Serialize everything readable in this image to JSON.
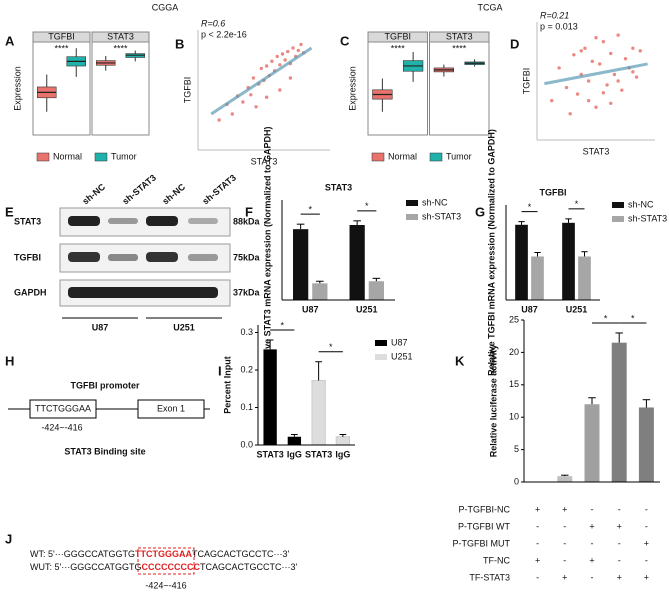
{
  "figure": {
    "group_labels": [
      "CGGA",
      "TCGA"
    ],
    "panel_letters": [
      "A",
      "B",
      "C",
      "D",
      "E",
      "F",
      "G",
      "H",
      "I",
      "J",
      "K"
    ]
  },
  "blot": {
    "lanes": [
      "sh-NC",
      "sh-STAT3",
      "sh-NC",
      "sh-STAT3"
    ],
    "proteins": [
      "STAT3",
      "TGFBI",
      "GAPDH"
    ],
    "sizes": [
      "88kDa",
      "75kDa",
      "37kDa"
    ],
    "cells": [
      "U87",
      "U251"
    ]
  },
  "promoter": {
    "site": "TTCTGGGAA",
    "exon": "Exon 1",
    "title": "TGFBI promoter",
    "position": "-424~-416",
    "caption": "STAT3 Binding site"
  },
  "sequences": {
    "rows": [
      {
        "prefix": "WT: 5'···GGGCCATGGTG",
        "site": "TTCTGGGAA",
        "suffix": "TCAGCACTGCCTC···3'"
      },
      {
        "prefix": "WUT: 5'···GGGCCATGGTG",
        "site": "CCCCCCCCC",
        "suffix": "TCAGCACTGCCTC···3'"
      }
    ],
    "position": "-424~-416"
  },
  "chart_data": [
    {
      "type": "box",
      "facets": [
        "TGFBI",
        "STAT3"
      ],
      "ylabel": "Expression",
      "significance": [
        "****",
        "****"
      ],
      "ylim": [
        3,
        15
      ],
      "series": [
        {
          "name": "Normal",
          "color": "#e8736c",
          "boxes": [
            {
              "whisker_low": 6,
              "q1": 7.8,
              "median": 8.5,
              "q3": 9.2,
              "whisker_high": 10.8
            },
            {
              "whisker_low": 11.3,
              "q1": 12,
              "median": 12.3,
              "q3": 12.6,
              "whisker_high": 13.2
            }
          ]
        },
        {
          "name": "Tumor",
          "color": "#20b2aa",
          "boxes": [
            {
              "whisker_low": 10.5,
              "q1": 11.9,
              "median": 12.5,
              "q3": 13.1,
              "whisker_high": 14.2
            },
            {
              "whisker_low": 12.5,
              "q1": 13,
              "median": 13.3,
              "q3": 13.5,
              "whisker_high": 13.9
            }
          ]
        }
      ]
    },
    {
      "type": "scatter",
      "annotations": [
        "R=0.6",
        "p < 2.2e-16"
      ],
      "xlabel": "STAT3",
      "ylabel": "TGFBI",
      "color": "#e8736c",
      "line_color": "#5b9bb5",
      "xlim": [
        10,
        15
      ],
      "ylim": [
        5,
        15
      ],
      "x": [
        10.8,
        11.1,
        11.3,
        11.5,
        11.7,
        11.9,
        12,
        12.1,
        12.3,
        12.4,
        12.5,
        12.6,
        12.7,
        12.8,
        12.9,
        13,
        13.1,
        13.2,
        13.3,
        13.4,
        13.5,
        13.6,
        13.7,
        13.8,
        13.9,
        14,
        12.2,
        12.6,
        13.1,
        13.5
      ],
      "values": [
        7.5,
        8.8,
        8,
        9.5,
        9,
        10.2,
        9.6,
        11,
        10.5,
        11.8,
        10.8,
        12,
        11.2,
        12.4,
        11.6,
        12.8,
        12.1,
        13,
        12.5,
        13.2,
        12.2,
        13.5,
        12.8,
        13.3,
        13.8,
        13.1,
        8.6,
        9.4,
        10,
        11
      ],
      "trend_x": [
        10.5,
        14.3
      ],
      "trend_y": [
        8,
        13.5
      ]
    },
    {
      "type": "box",
      "facets": [
        "TGFBI",
        "STAT3"
      ],
      "ylabel": "Expression",
      "significance": [
        "****",
        "****"
      ],
      "ylim": [
        2,
        16
      ],
      "series": [
        {
          "name": "Normal",
          "color": "#e8736c",
          "boxes": [
            {
              "whisker_low": 5.5,
              "q1": 7.4,
              "median": 8.1,
              "q3": 8.8,
              "whisker_high": 10.5
            },
            {
              "whisker_low": 10.8,
              "q1": 11.5,
              "median": 11.8,
              "q3": 12.1,
              "whisker_high": 12.6
            }
          ]
        },
        {
          "name": "Tumor",
          "color": "#20b2aa",
          "boxes": [
            {
              "whisker_low": 10,
              "q1": 11.6,
              "median": 12.4,
              "q3": 13.2,
              "whisker_high": 14.5
            },
            {
              "whisker_low": 12.3,
              "q1": 12.6,
              "median": 12.8,
              "q3": 13,
              "whisker_high": 13.4
            }
          ]
        }
      ]
    },
    {
      "type": "scatter",
      "annotations": [
        "R=0.21",
        "p = 0.013"
      ],
      "xlabel": "STAT3",
      "ylabel": "TGFBI",
      "color": "#e8736c",
      "line_color": "#5b9bb5",
      "xlim": [
        2,
        3.6
      ],
      "ylim": [
        6,
        15
      ],
      "x": [
        2.2,
        2.3,
        2.4,
        2.5,
        2.55,
        2.6,
        2.65,
        2.7,
        2.75,
        2.8,
        2.85,
        2.9,
        2.95,
        3,
        3.05,
        3.1,
        3.15,
        3.2,
        3.25,
        3.3,
        3.35,
        3.4,
        2.45,
        2.7,
        2.9,
        3.1,
        3.3,
        2.6,
        2.8,
        3
      ],
      "values": [
        9,
        11.5,
        10,
        12.5,
        9.5,
        11,
        13,
        10.5,
        12,
        8.5,
        11.8,
        13.5,
        10.2,
        12.6,
        11,
        14,
        9.8,
        12.2,
        11.5,
        13,
        10.8,
        12.8,
        8,
        9,
        9.6,
        10.5,
        11.2,
        12.8,
        13.8,
        8.8
      ],
      "trend_x": [
        2.1,
        3.5
      ],
      "trend_y": [
        10.3,
        11.8
      ]
    },
    {
      "type": "bar",
      "title": "STAT3",
      "ylabel": "Relative STAT3 mRNA expression (Normalized to GAPDH)",
      "categories": [
        "U87",
        "U251"
      ],
      "ylim": [
        0,
        2.4
      ],
      "significance": [
        "*",
        "*"
      ],
      "series": [
        {
          "name": "sh-NC",
          "color": "#111111",
          "values": [
            1.7,
            1.8
          ],
          "errors": [
            0.12,
            0.1
          ]
        },
        {
          "name": "sh-STAT3",
          "color": "#a6a6a6",
          "values": [
            0.4,
            0.45
          ],
          "errors": [
            0.05,
            0.07
          ]
        }
      ]
    },
    {
      "type": "bar",
      "title": "TGFBI",
      "ylabel": "Relative TGFBI mRNA expression (Normalized to GAPDH)",
      "categories": [
        "U87",
        "U251"
      ],
      "ylim": [
        0,
        2.4
      ],
      "significance": [
        "*",
        "*"
      ],
      "series": [
        {
          "name": "sh-NC",
          "color": "#111111",
          "values": [
            1.9,
            1.95
          ],
          "errors": [
            0.08,
            0.1
          ]
        },
        {
          "name": "sh-STAT3",
          "color": "#a6a6a6",
          "values": [
            1.1,
            1.1
          ],
          "errors": [
            0.1,
            0.12
          ]
        }
      ]
    },
    {
      "type": "bar",
      "ylabel": "Percent Input",
      "categories": [
        "STAT3",
        "IgG",
        "STAT3",
        "IgG"
      ],
      "values": [
        0.255,
        0.022,
        0.172,
        0.022
      ],
      "errors": [
        0.025,
        0.006,
        0.05,
        0.006
      ],
      "colors": [
        "#000000",
        "#000000",
        "#dddddd",
        "#dddddd"
      ],
      "legend": [
        {
          "name": "U87",
          "color": "#000000"
        },
        {
          "name": "U251",
          "color": "#dddddd"
        }
      ],
      "significance": [
        "*",
        "*"
      ],
      "ylim": [
        0,
        0.32
      ],
      "yticks": [
        {
          "value": 0,
          "label": "0.0"
        },
        {
          "value": 0.1,
          "label": "0.1"
        },
        {
          "value": 0.2,
          "label": "0.2"
        },
        {
          "value": 0.3,
          "label": "0.3"
        }
      ]
    },
    {
      "type": "bar",
      "ylabel": "Relative luciferase activity",
      "values": [
        0,
        0.9,
        12,
        21.5,
        11.5
      ],
      "errors": [
        0,
        0.15,
        1,
        1.5,
        1.2
      ],
      "colors": [
        "#bfbfbf",
        "#bfbfbf",
        "#a0a0a0",
        "#7f7f7f",
        "#7f7f7f"
      ],
      "ylim": [
        0,
        25
      ],
      "yticks": [
        0,
        5,
        10,
        15,
        20,
        25
      ],
      "significance": [
        "*",
        "*"
      ],
      "table": [
        {
          "label": "P-TGFBI-NC",
          "marks": [
            "+",
            "+",
            "-",
            "-",
            "-"
          ]
        },
        {
          "label": "P-TGFBI WT",
          "marks": [
            "-",
            "-",
            "+",
            "+",
            "-"
          ]
        },
        {
          "label": "P-TGFBI MUT",
          "marks": [
            "-",
            "-",
            "-",
            "-",
            "+"
          ]
        },
        {
          "label": "TF-NC",
          "marks": [
            "+",
            "-",
            "+",
            "-",
            "-"
          ]
        },
        {
          "label": "TF-STAT3",
          "marks": [
            "-",
            "+",
            "-",
            "+",
            "+"
          ]
        }
      ]
    }
  ]
}
